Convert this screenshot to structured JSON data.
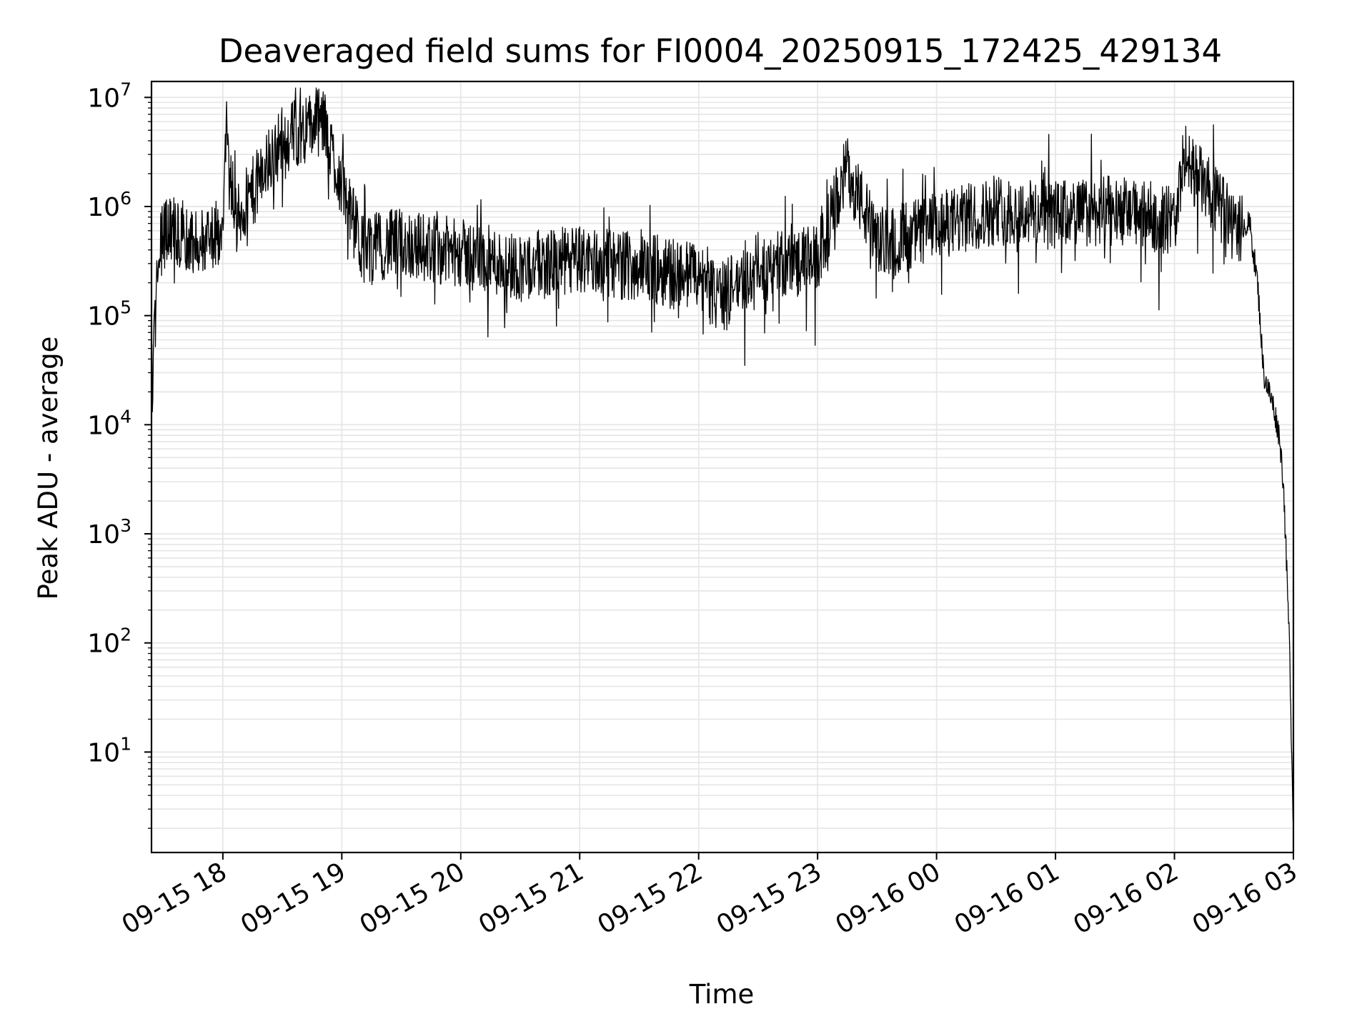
{
  "chart_data": {
    "type": "line",
    "title": "Deaveraged field sums for FI0004_20250915_172425_429134",
    "xlabel": "Time",
    "ylabel": "Peak ADU - average",
    "yscale": "log",
    "grid": true,
    "line_color": "#000000",
    "grid_color": "#e6e6e6",
    "xlim": [
      "2025-09-15 17:24",
      "2025-09-16 03:00"
    ],
    "ylim": [
      1.2,
      14000000
    ],
    "x_ticks": [
      "09-15 18",
      "09-15 19",
      "09-15 20",
      "09-15 21",
      "09-15 22",
      "09-15 23",
      "09-16 00",
      "09-16 01",
      "09-16 02",
      "09-16 03"
    ],
    "y_ticks": [
      {
        "base": "10",
        "exp": "1"
      },
      {
        "base": "10",
        "exp": "2"
      },
      {
        "base": "10",
        "exp": "3"
      },
      {
        "base": "10",
        "exp": "4"
      },
      {
        "base": "10",
        "exp": "5"
      },
      {
        "base": "10",
        "exp": "6"
      },
      {
        "base": "10",
        "exp": "7"
      }
    ],
    "series": [
      {
        "x": [
          "2025-09-15 17:24",
          "2025-09-15 17:25",
          "2025-09-15 17:27",
          "2025-09-15 17:29",
          "2025-09-15 17:32",
          "2025-09-15 17:40",
          "2025-09-15 17:50",
          "2025-09-15 18:00",
          "2025-09-15 18:02",
          "2025-09-15 18:05",
          "2025-09-15 18:30",
          "2025-09-15 18:50",
          "2025-09-15 19:10",
          "2025-09-15 19:30",
          "2025-09-15 20:00",
          "2025-09-15 20:30",
          "2025-09-15 21:00",
          "2025-09-15 21:30",
          "2025-09-15 22:00",
          "2025-09-15 22:10",
          "2025-09-15 22:30",
          "2025-09-15 23:00",
          "2025-09-15 23:15",
          "2025-09-15 23:30",
          "2025-09-16 00:00",
          "2025-09-16 00:30",
          "2025-09-16 01:00",
          "2025-09-16 01:30",
          "2025-09-16 02:00",
          "2025-09-16 02:05",
          "2025-09-16 02:30",
          "2025-09-16 02:38",
          "2025-09-16 02:42",
          "2025-09-16 02:45",
          "2025-09-16 02:50",
          "2025-09-16 02:53",
          "2025-09-16 02:55",
          "2025-09-16 02:58",
          "2025-09-16 03:00"
        ],
        "y": [
          15000,
          40000,
          300000,
          500000,
          700000,
          600000,
          500000,
          700000,
          5500000,
          700000,
          4500000,
          6500000,
          450000,
          500000,
          400000,
          300000,
          350000,
          300000,
          250000,
          150000,
          300000,
          350000,
          2500000,
          500000,
          700000,
          1000000,
          900000,
          1000000,
          800000,
          3000000,
          700000,
          700000,
          200000,
          30000,
          15000,
          8000,
          3000,
          100,
          2
        ]
      }
    ]
  }
}
